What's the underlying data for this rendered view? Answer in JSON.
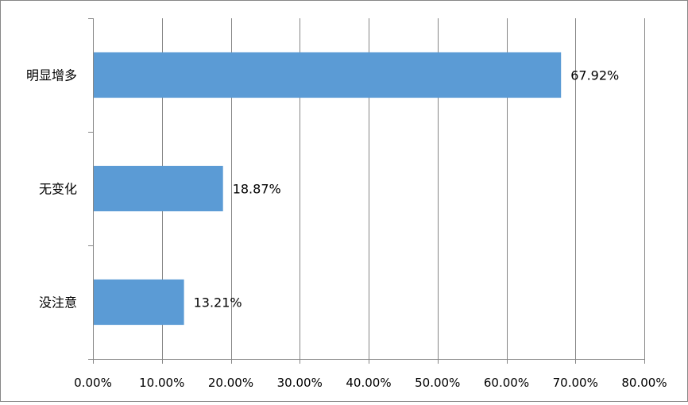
{
  "chart_data": {
    "type": "bar",
    "orientation": "horizontal",
    "categories": [
      "明显增多",
      "无变化",
      "没注意"
    ],
    "values": [
      67.92,
      18.87,
      13.21
    ],
    "data_labels": [
      "67.92%",
      "18.87%",
      "13.21%"
    ],
    "xlim": [
      0,
      80
    ],
    "xticks": [
      0,
      10,
      20,
      30,
      40,
      50,
      60,
      70,
      80
    ],
    "xtick_labels": [
      "0.00%",
      "10.00%",
      "20.00%",
      "30.00%",
      "40.00%",
      "50.00%",
      "60.00%",
      "70.00%",
      "80.00%"
    ],
    "grid": "vertical",
    "legend": "none",
    "bar_color": "#5B9BD5",
    "grid_color": "#868686"
  }
}
